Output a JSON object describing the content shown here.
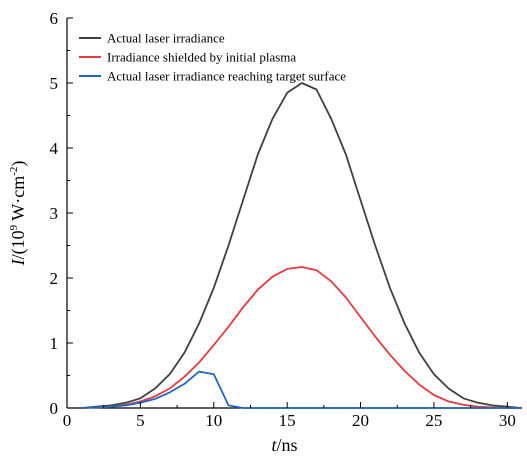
{
  "chart_data": {
    "type": "line",
    "xlabel_var": "t",
    "xlabel_unit": "/ns",
    "ylabel_var": "I",
    "ylabel_unit_pre": "/(10",
    "ylabel_unit_exp": "9",
    "ylabel_unit_mid": " W·cm",
    "ylabel_unit_exp2": "-2",
    "ylabel_unit_post": ")",
    "xlim": [
      0,
      31
    ],
    "ylim": [
      0,
      6
    ],
    "xticks": [
      0,
      5,
      10,
      15,
      20,
      25,
      30
    ],
    "yticks": [
      0,
      1,
      2,
      3,
      4,
      5,
      6
    ],
    "grid": false,
    "legend_position": "top-left",
    "series": [
      {
        "name": "Actual laser irradiance",
        "color": "#404040",
        "x": [
          1,
          2,
          3,
          4,
          5,
          6,
          7,
          8,
          9,
          10,
          11,
          12,
          13,
          14,
          15,
          16,
          17,
          18,
          19,
          20,
          21,
          22,
          23,
          24,
          25,
          26,
          27,
          28,
          29,
          30,
          31
        ],
        "y": [
          0.0,
          0.02,
          0.04,
          0.08,
          0.15,
          0.3,
          0.52,
          0.85,
          1.3,
          1.85,
          2.5,
          3.2,
          3.9,
          4.45,
          4.85,
          5.0,
          4.9,
          4.45,
          3.9,
          3.2,
          2.5,
          1.85,
          1.3,
          0.85,
          0.52,
          0.3,
          0.15,
          0.08,
          0.04,
          0.02,
          0.0
        ]
      },
      {
        "name": "Irradiance shielded by initial plasma",
        "color": "#e8393f",
        "x": [
          1,
          2,
          3,
          4,
          5,
          6,
          7,
          8,
          9,
          10,
          11,
          12,
          13,
          14,
          15,
          16,
          17,
          18,
          19,
          20,
          21,
          22,
          23,
          24,
          25,
          26,
          27,
          28,
          29,
          30,
          31
        ],
        "y": [
          0.0,
          0.01,
          0.02,
          0.05,
          0.1,
          0.18,
          0.3,
          0.48,
          0.7,
          0.97,
          1.25,
          1.55,
          1.82,
          2.02,
          2.14,
          2.17,
          2.12,
          1.95,
          1.7,
          1.4,
          1.1,
          0.82,
          0.57,
          0.36,
          0.2,
          0.1,
          0.05,
          0.02,
          0.01,
          0.0,
          0.0
        ]
      },
      {
        "name": "Actual laser irradiance reaching target surface",
        "color": "#1f66c6",
        "x": [
          1,
          2,
          3,
          4,
          5,
          6,
          7,
          8,
          9,
          10,
          11,
          12,
          13,
          16,
          20,
          25,
          31
        ],
        "y": [
          0.0,
          0.01,
          0.02,
          0.04,
          0.08,
          0.14,
          0.24,
          0.37,
          0.56,
          0.52,
          0.04,
          0.0,
          0.0,
          0.0,
          0.0,
          0.0,
          0.0
        ]
      }
    ]
  }
}
